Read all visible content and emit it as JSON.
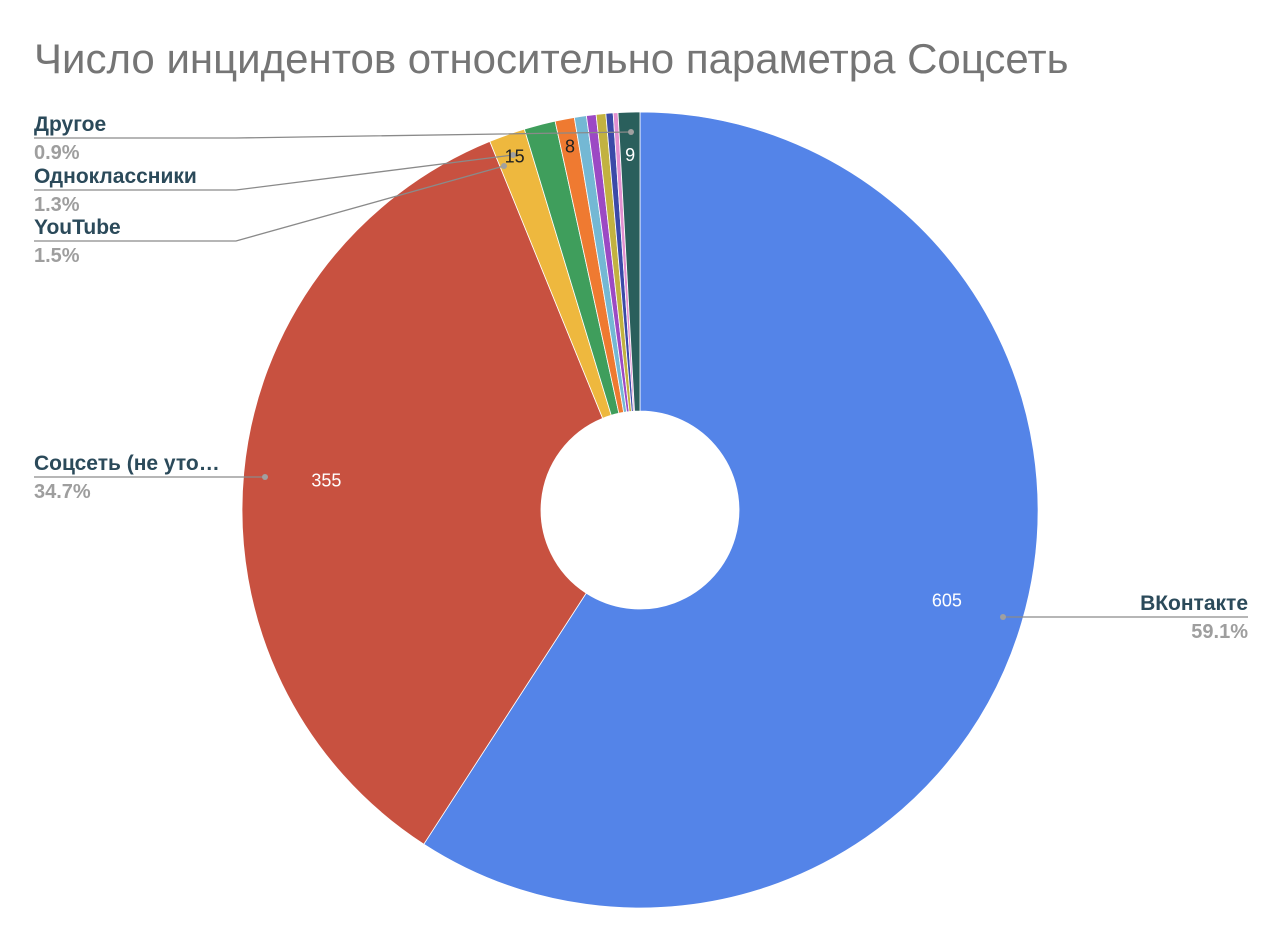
{
  "chart_data": {
    "type": "pie",
    "donut": true,
    "title": "Число инцидентов относительно параметра Соцсеть",
    "series": [
      {
        "name": "ВКонтакте",
        "value": 605,
        "percent": "59.1%",
        "color": "#5484e8",
        "label": "605",
        "label_color": "#ffffff",
        "legend_name": "ВКонтакте",
        "legend_pct": "59.1%"
      },
      {
        "name": "Соцсеть (не уто…",
        "value": 355,
        "percent": "34.7%",
        "color": "#c85140",
        "label": "355",
        "label_color": "#ffffff",
        "legend_name": "Соцсеть (не уто…",
        "legend_pct": "34.7%"
      },
      {
        "name": "YouTube",
        "value": 15,
        "percent": "1.5%",
        "color": "#eeb83e",
        "label": "15",
        "label_color": "#222222",
        "legend_name": "YouTube",
        "legend_pct": "1.5%"
      },
      {
        "name": "Одноклассники",
        "value": 13,
        "percent": "1.3%",
        "color": "#3f9e5c",
        "label": "",
        "label_color": "#ffffff",
        "legend_name": "Одноклассники",
        "legend_pct": "1.3%"
      },
      {
        "name": "",
        "value": 8,
        "color": "#ef7a31",
        "label": "8",
        "label_color": "#222222"
      },
      {
        "name": "",
        "value": 5,
        "color": "#74b8d4",
        "label": "",
        "label_color": "#222222"
      },
      {
        "name": "",
        "value": 4,
        "color": "#9c49c4",
        "label": "",
        "label_color": "#222222"
      },
      {
        "name": "",
        "value": 4,
        "color": "#c2b240",
        "label": "",
        "label_color": "#222222"
      },
      {
        "name": "",
        "value": 3,
        "color": "#3b4aa8",
        "label": "",
        "label_color": "#222222"
      },
      {
        "name": "",
        "value": 2,
        "color": "#e28fd0",
        "label": "",
        "label_color": "#222222"
      },
      {
        "name": "Другое",
        "value": 9,
        "percent": "0.9%",
        "color": "#2a5f5c",
        "label": "9",
        "label_color": "#ffffff",
        "legend_name": "Другое",
        "legend_pct": "0.9%"
      }
    ]
  }
}
